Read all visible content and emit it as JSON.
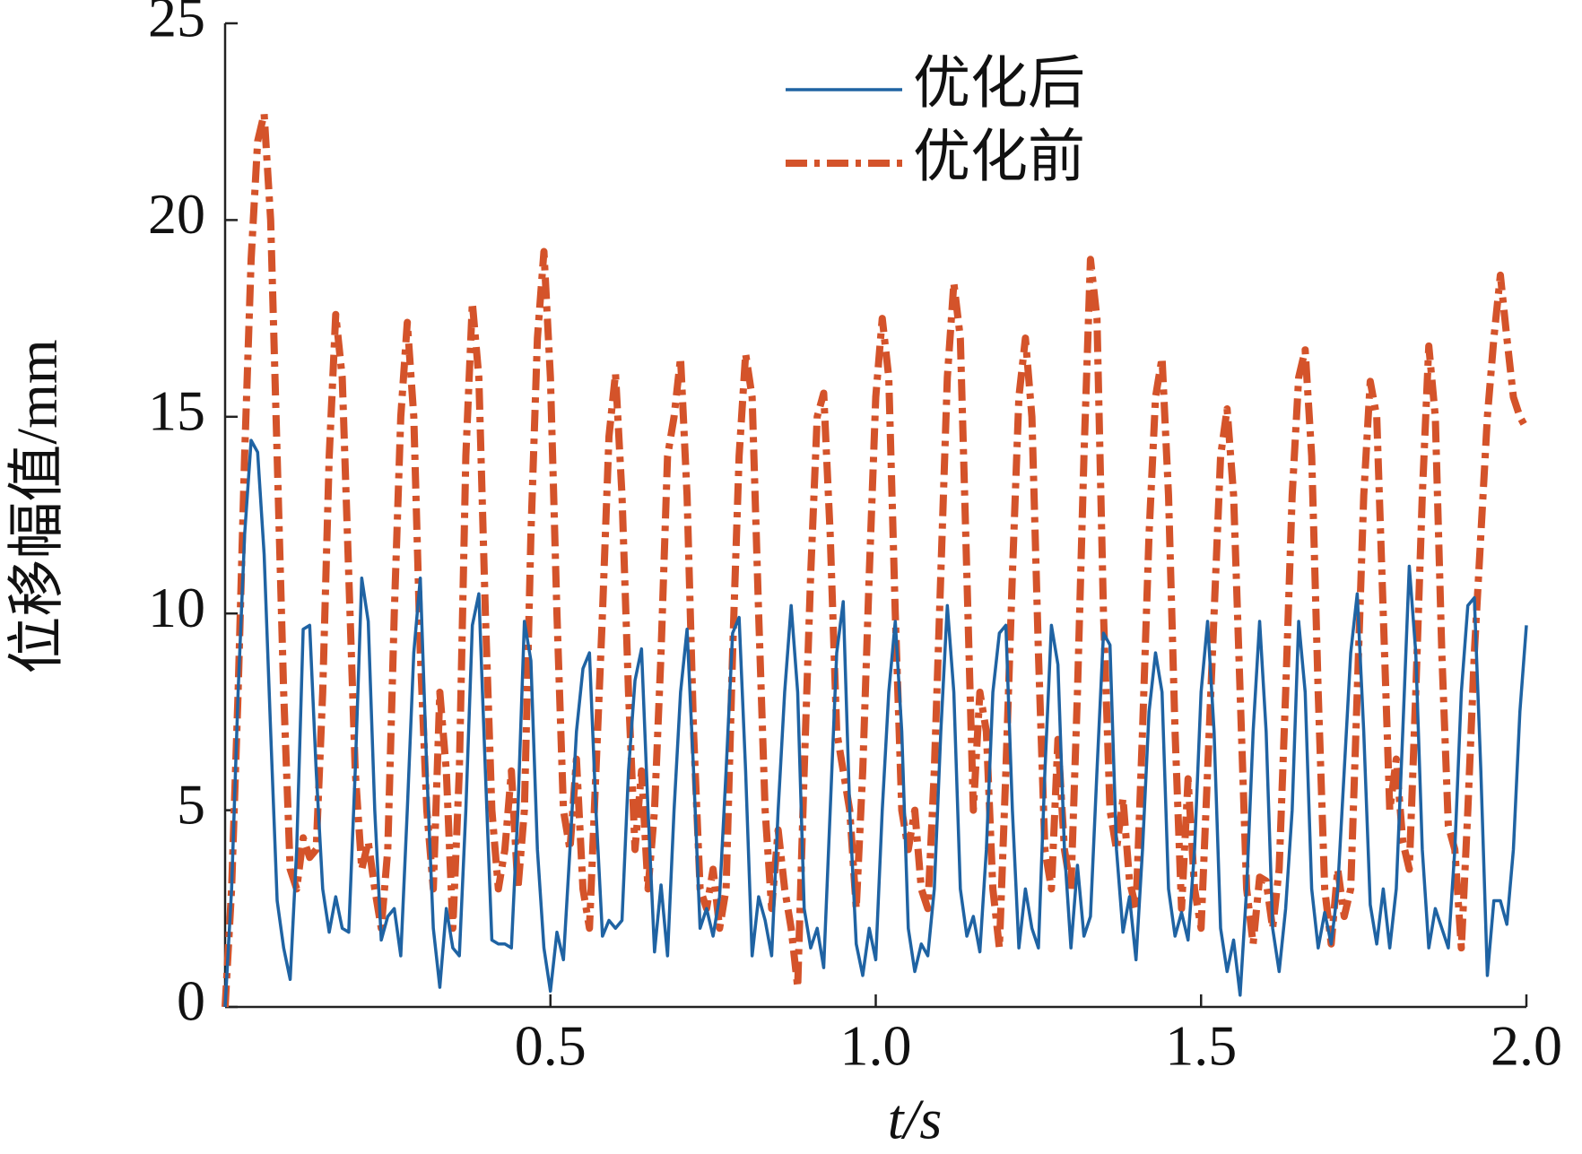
{
  "chart_data": {
    "type": "line",
    "xlabel": "t/s",
    "ylabel": "位移幅值/mm",
    "xlim": [
      0,
      2
    ],
    "ylim": [
      0,
      25
    ],
    "xticks": [
      0.5,
      {
        "value": 1,
        "label": "1.0"
      },
      1.5,
      {
        "value": 2,
        "label": "2.0"
      }
    ],
    "yticks": [
      0,
      5,
      10,
      15,
      20,
      25
    ],
    "legend": "top-center",
    "x": [
      0,
      0.01,
      0.02,
      0.03,
      0.04,
      0.05,
      0.06,
      0.07,
      0.08,
      0.09,
      0.1,
      0.11,
      0.12,
      0.13,
      0.14,
      0.15,
      0.16,
      0.17,
      0.18,
      0.19,
      0.2,
      0.21,
      0.22,
      0.23,
      0.24,
      0.25,
      0.26,
      0.27,
      0.28,
      0.29,
      0.3,
      0.31,
      0.32,
      0.33,
      0.34,
      0.35,
      0.36,
      0.37,
      0.38,
      0.39,
      0.4,
      0.41,
      0.42,
      0.43,
      0.44,
      0.45,
      0.46,
      0.47,
      0.48,
      0.49,
      0.5,
      0.51,
      0.52,
      0.53,
      0.54,
      0.55,
      0.56,
      0.57,
      0.58,
      0.59,
      0.6,
      0.61,
      0.62,
      0.63,
      0.64,
      0.65,
      0.66,
      0.67,
      0.68,
      0.69,
      0.7,
      0.71,
      0.72,
      0.73,
      0.74,
      0.75,
      0.76,
      0.77,
      0.78,
      0.79,
      0.8,
      0.81,
      0.82,
      0.83,
      0.84,
      0.85,
      0.86,
      0.87,
      0.88,
      0.89,
      0.9,
      0.91,
      0.92,
      0.93,
      0.94,
      0.95,
      0.96,
      0.97,
      0.98,
      0.99,
      1,
      1.01,
      1.02,
      1.03,
      1.04,
      1.05,
      1.06,
      1.07,
      1.08,
      1.09,
      1.1,
      1.11,
      1.12,
      1.13,
      1.14,
      1.15,
      1.16,
      1.17,
      1.18,
      1.19,
      1.2,
      1.21,
      1.22,
      1.23,
      1.24,
      1.25,
      1.26,
      1.27,
      1.28,
      1.29,
      1.3,
      1.31,
      1.32,
      1.33,
      1.34,
      1.35,
      1.36,
      1.37,
      1.38,
      1.39,
      1.4,
      1.41,
      1.42,
      1.43,
      1.44,
      1.45,
      1.46,
      1.47,
      1.48,
      1.49,
      1.5,
      1.51,
      1.52,
      1.53,
      1.54,
      1.55,
      1.56,
      1.57,
      1.58,
      1.59,
      1.6,
      1.61,
      1.62,
      1.63,
      1.64,
      1.65,
      1.66,
      1.67,
      1.68,
      1.69,
      1.7,
      1.71,
      1.72,
      1.73,
      1.74,
      1.75,
      1.76,
      1.77,
      1.78,
      1.79,
      1.8,
      1.81,
      1.82,
      1.83,
      1.84,
      1.85,
      1.86,
      1.87,
      1.88,
      1.89,
      1.9,
      1.91,
      1.92,
      1.93,
      1.94,
      1.95,
      1.96,
      1.97,
      1.98,
      1.99,
      2
    ],
    "series": [
      {
        "name": "优化后",
        "color": "#1f63a3",
        "linestyle": "solid",
        "values": [
          0,
          3,
          8,
          12,
          14.4,
          14.1,
          11.5,
          7,
          2.7,
          1.5,
          0.7,
          4,
          9.6,
          9.7,
          6,
          3,
          1.9,
          2.8,
          2,
          1.9,
          6,
          10.9,
          9.8,
          5,
          1.7,
          2.3,
          2.5,
          1.3,
          5,
          9,
          10.9,
          6,
          2,
          0.5,
          2.5,
          1.5,
          1.3,
          5,
          9.7,
          10.5,
          6,
          1.7,
          1.6,
          1.6,
          1.5,
          5,
          9.8,
          8.8,
          4,
          1.5,
          0.4,
          1.9,
          1.2,
          4,
          7,
          8.6,
          9,
          5,
          1.8,
          2.2,
          2,
          2.2,
          6,
          8.3,
          9.1,
          5,
          1.4,
          3.1,
          1.3,
          5,
          8,
          9.6,
          6,
          2,
          2.5,
          1.8,
          2.8,
          6,
          9.5,
          9.9,
          6,
          1.3,
          2.8,
          2.2,
          1.3,
          5,
          8,
          10.2,
          8,
          2.5,
          1.5,
          2,
          1,
          5,
          9,
          10.3,
          5,
          1.6,
          0.8,
          2,
          1.2,
          5,
          8,
          9.8,
          7,
          2,
          0.9,
          1.6,
          1.3,
          3,
          7,
          10.2,
          8,
          3,
          1.8,
          2.3,
          1.4,
          4,
          8,
          9.5,
          9.7,
          5,
          1.5,
          3,
          2,
          1.5,
          6,
          9.7,
          8.7,
          4,
          1.5,
          3.6,
          1.8,
          2.3,
          6,
          9.5,
          9.2,
          4,
          1.9,
          2.8,
          1.2,
          4,
          7.5,
          9,
          8,
          3,
          1.8,
          2.4,
          1.7,
          4,
          8,
          9.8,
          7,
          2,
          0.9,
          1.7,
          0.3,
          3,
          7,
          9.8,
          7,
          2,
          0.9,
          2.5,
          5,
          9.8,
          8,
          3,
          1.5,
          2.4,
          1.6,
          3,
          6,
          9,
          10.5,
          7,
          2.6,
          1.6,
          3,
          1.5,
          3,
          7,
          11.2,
          9,
          4,
          1.5,
          2.5,
          2,
          1.5,
          4,
          8,
          10.2,
          10.4,
          6,
          0.8,
          2.7,
          2.7,
          2.1,
          4,
          7.5,
          9.7
        ]
      },
      {
        "name": "优化前",
        "color": "#d4532a",
        "linestyle": "dashdot",
        "values": [
          0,
          3,
          8,
          14,
          19,
          22,
          22.7,
          20,
          14,
          8,
          3.5,
          3,
          4.3,
          3.8,
          4,
          8,
          14,
          17.6,
          16,
          11,
          6,
          3.5,
          4.2,
          3,
          2,
          4,
          10,
          15,
          17.4,
          15,
          9,
          5,
          3,
          8,
          6,
          2,
          6,
          14,
          17.9,
          16,
          10,
          5,
          3,
          4,
          6,
          3,
          5,
          12,
          17,
          19.2,
          16,
          10,
          5,
          4,
          6.3,
          3,
          2,
          6,
          10,
          14.5,
          16.1,
          13,
          8,
          4,
          6,
          3,
          5,
          9,
          14,
          15,
          16.5,
          13,
          7,
          3,
          2.5,
          3.5,
          2,
          3,
          9,
          14,
          16.6,
          15.5,
          10,
          5,
          2.5,
          4.5,
          3,
          2,
          0.5,
          6,
          11,
          15,
          15.6,
          12,
          7,
          6,
          5,
          2.5,
          6,
          11,
          15.5,
          17.5,
          16,
          10,
          5,
          4,
          5,
          3,
          2.5,
          6,
          11,
          16,
          18.4,
          17,
          11,
          5,
          8,
          7,
          3,
          1.5,
          6,
          11,
          15.5,
          17,
          15,
          9,
          4,
          3,
          6.8,
          4,
          3,
          8,
          14,
          19,
          17.5,
          10,
          5,
          4,
          5.3,
          3.2,
          2.5,
          7,
          12,
          15.5,
          16.5,
          13,
          7,
          2.5,
          5.8,
          3,
          2,
          6,
          10,
          14,
          15.2,
          13,
          8,
          3,
          1.6,
          3.3,
          3.2,
          2,
          3.5,
          8,
          13,
          16,
          16.7,
          14,
          8,
          3,
          1.6,
          3.5,
          2.3,
          3,
          8,
          13,
          15.9,
          15,
          10,
          5,
          6.3,
          4.2,
          3.5,
          8,
          13,
          16.8,
          15,
          9,
          4.6,
          4,
          1.5,
          5,
          9,
          12,
          15,
          17,
          18.6,
          17,
          15.5,
          15,
          14.7
        ]
      }
    ]
  }
}
